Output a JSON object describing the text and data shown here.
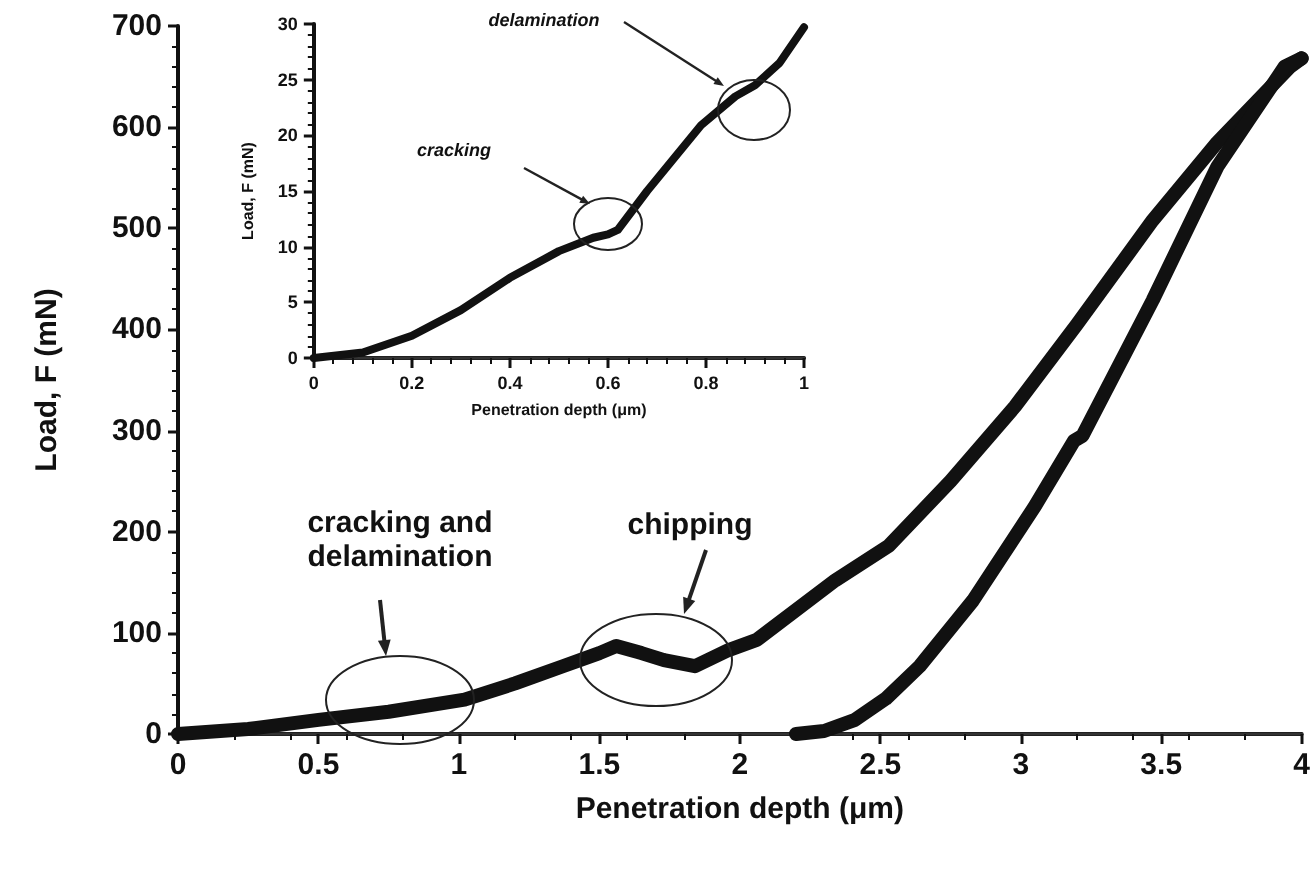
{
  "chart_data": [
    {
      "type": "line",
      "xlabel": "Penetration depth (μm)",
      "ylabel": "Load, F (mN)",
      "xlim": [
        0,
        4
      ],
      "xticks": [
        0,
        0.5,
        1,
        1.5,
        2,
        2.5,
        3,
        3.5,
        4
      ],
      "ylim": [
        0,
        700
      ],
      "yticks": [
        0,
        100,
        200,
        300,
        400,
        500,
        600,
        700
      ],
      "grid": false,
      "marker": "none",
      "line_style": "solid",
      "series": [
        {
          "color": "#111111",
          "x": [
            0,
            0.25,
            0.5,
            0.75,
            1.02,
            1.2,
            1.37,
            1.5,
            1.56,
            1.65,
            1.73,
            1.84,
            1.96,
            2.06,
            2.34,
            2.53,
            2.75,
            2.98,
            3.2,
            3.47,
            3.7,
            3.96,
            4
          ],
          "values": [
            0,
            5,
            14,
            22,
            34,
            50,
            67,
            80,
            87,
            80,
            73,
            67,
            83,
            93,
            152,
            186,
            250,
            324,
            405,
            508,
            585,
            660,
            668
          ]
        },
        {
          "color": "#111111",
          "x": [
            2.2,
            2.3,
            2.41,
            2.52,
            2.64,
            2.83,
            3.05,
            3.19,
            3.22,
            3.47,
            3.7,
            3.94,
            4
          ],
          "values": [
            0,
            3,
            14,
            35,
            67,
            132,
            225,
            290,
            295,
            429,
            561,
            660,
            668
          ]
        }
      ],
      "annotations": [
        "cracking and delamination",
        "chipping"
      ]
    },
    {
      "type": "line",
      "xlabel": "Penetration depth (μm)",
      "ylabel": "Load, F (mN)",
      "xlim": [
        0,
        1
      ],
      "xticks": [
        0,
        0.2,
        0.4,
        0.6,
        0.8,
        1
      ],
      "ylim": [
        0,
        30
      ],
      "yticks": [
        0,
        5,
        10,
        15,
        20,
        25,
        30
      ],
      "grid": false,
      "marker": "none",
      "line_style": "solid",
      "series": [
        {
          "color": "#111111",
          "x": [
            0,
            0.1,
            0.2,
            0.3,
            0.4,
            0.5,
            0.57,
            0.6,
            0.62,
            0.68,
            0.79,
            0.86,
            0.9,
            0.95,
            1
          ],
          "values": [
            0,
            0.5,
            2,
            4.3,
            7.2,
            9.6,
            10.8,
            11.1,
            11.5,
            15,
            20.9,
            23.5,
            24.5,
            26.5,
            29.7
          ]
        }
      ],
      "annotations": [
        "cracking",
        "delamination"
      ]
    }
  ]
}
